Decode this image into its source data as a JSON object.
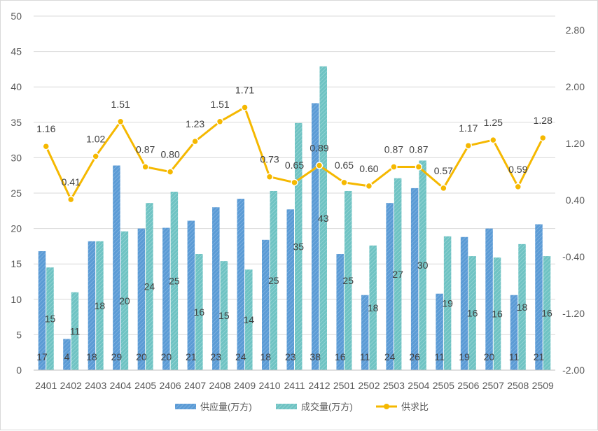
{
  "chart_data": {
    "type": "bar",
    "categories": [
      "2401",
      "2402",
      "2403",
      "2404",
      "2405",
      "2406",
      "2407",
      "2408",
      "2409",
      "2410",
      "2411",
      "2412",
      "2501",
      "2502",
      "2503",
      "2504",
      "2505",
      "2506",
      "2507",
      "2508",
      "2509"
    ],
    "series": [
      {
        "name": "供应量(万方)",
        "type": "bar",
        "axis": "left",
        "color": "#5b9bd5",
        "values": [
          16.8,
          4.4,
          18.2,
          28.9,
          20.0,
          20.1,
          21.1,
          23.0,
          24.2,
          18.4,
          22.7,
          37.7,
          16.4,
          10.6,
          23.6,
          25.7,
          10.8,
          18.8,
          20.0,
          10.6,
          20.6
        ],
        "labels": [
          "17",
          "4",
          "18",
          "29",
          "20",
          "20",
          "21",
          "23",
          "24",
          "18",
          "23",
          "38",
          "16",
          "11",
          "24",
          "26",
          "11",
          "19",
          "20",
          "11",
          "21"
        ]
      },
      {
        "name": "成交量(万方)",
        "type": "bar",
        "axis": "left",
        "color": "#6fc3c3",
        "values": [
          14.5,
          11.0,
          18.2,
          19.6,
          23.6,
          25.2,
          16.4,
          15.4,
          14.2,
          25.3,
          34.9,
          42.9,
          25.3,
          17.6,
          27.1,
          29.6,
          18.9,
          16.1,
          15.9,
          17.8,
          16.1
        ],
        "labels": [
          "15",
          "11",
          "18",
          "20",
          "24",
          "25",
          "16",
          "15",
          "14",
          "25",
          "35",
          "43",
          "25",
          "18",
          "27",
          "30",
          "19",
          "16",
          "16",
          "18",
          "16"
        ]
      },
      {
        "name": "供求比",
        "type": "line",
        "axis": "right",
        "color": "#f5b800",
        "values": [
          1.16,
          0.41,
          1.02,
          1.51,
          0.87,
          0.8,
          1.23,
          1.51,
          1.71,
          0.73,
          0.65,
          0.89,
          0.65,
          0.6,
          0.87,
          0.87,
          0.57,
          1.17,
          1.25,
          0.59,
          1.28
        ],
        "labels": [
          "1.16",
          "0.41",
          "1.02",
          "1.51",
          "0.87",
          "0.80",
          "1.23",
          "1.51",
          "1.71",
          "0.73",
          "0.65",
          "0.89",
          "0.65",
          "0.60",
          "0.87",
          "0.87",
          "0.57",
          "1.17",
          "1.25",
          "0.59",
          "1.28"
        ]
      }
    ],
    "y_left": {
      "min": 0,
      "max": 50,
      "step": 5,
      "ticks": [
        "0",
        "5",
        "10",
        "15",
        "20",
        "25",
        "30",
        "35",
        "40",
        "45",
        "50"
      ]
    },
    "y_right": {
      "min": -2.0,
      "max": 3.0,
      "ticks": [
        "-2.00",
        "-1.20",
        "-0.40",
        "0.40",
        "1.20",
        "2.00",
        "2.80"
      ],
      "tick_values": [
        -2.0,
        -1.2,
        -0.4,
        0.4,
        1.2,
        2.0,
        2.8
      ]
    },
    "title": "",
    "xlabel": "",
    "ylabel": "",
    "grid": true,
    "legend": "bottom-center"
  }
}
